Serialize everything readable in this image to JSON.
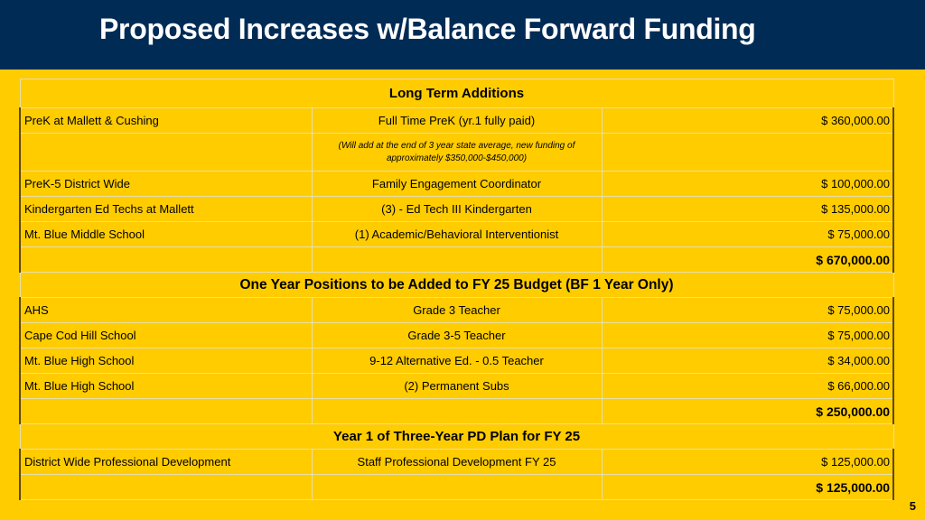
{
  "title": "Proposed Increases w/Balance Forward Funding",
  "sections": {
    "long_term": {
      "header": "Long Term Additions",
      "rows": [
        {
          "location": "PreK at Mallett & Cushing",
          "position": "Full Time PreK (yr.1 fully paid)",
          "amount": "$ 360,000.00"
        },
        {
          "location": "",
          "position": "(Will add at the end of 3 year state average, new funding of approximately $350,000-$450,000)",
          "amount": ""
        },
        {
          "location": "PreK-5 District Wide",
          "position": "Family Engagement Coordinator",
          "amount": "$ 100,000.00"
        },
        {
          "location": "Kindergarten Ed Techs at Mallett",
          "position": "(3) - Ed Tech III Kindergarten",
          "amount": "$ 135,000.00"
        },
        {
          "location": "Mt. Blue Middle School",
          "position": "(1) Academic/Behavioral Interventionist",
          "amount": "$ 75,000.00"
        }
      ],
      "total": "$ 670,000.00"
    },
    "one_year": {
      "header": "One Year Positions to be Added to FY 25 Budget (BF 1 Year Only)",
      "rows": [
        {
          "location": "AHS",
          "position": "Grade 3 Teacher",
          "amount": "$ 75,000.00"
        },
        {
          "location": "Cape Cod Hill School",
          "position": "Grade 3-5 Teacher",
          "amount": "$ 75,000.00"
        },
        {
          "location": "Mt. Blue High School",
          "position": "9-12 Alternative Ed. - 0.5 Teacher",
          "amount": "$ 34,000.00"
        },
        {
          "location": "Mt. Blue High School",
          "position": "(2) Permanent Subs",
          "amount": "$ 66,000.00"
        }
      ],
      "total": "$ 250,000.00"
    },
    "pd_plan": {
      "header": "Year 1 of Three-Year PD Plan for FY 25",
      "rows": [
        {
          "location": "District Wide Professional Development",
          "position": "Staff Professional Development FY 25",
          "amount": "$ 125,000.00"
        }
      ],
      "total": "$ 125,000.00"
    }
  },
  "page_number": "5",
  "colors": {
    "background": "#FFCC00",
    "title_bar": "#002B55",
    "title_text": "#FFFFFF"
  }
}
